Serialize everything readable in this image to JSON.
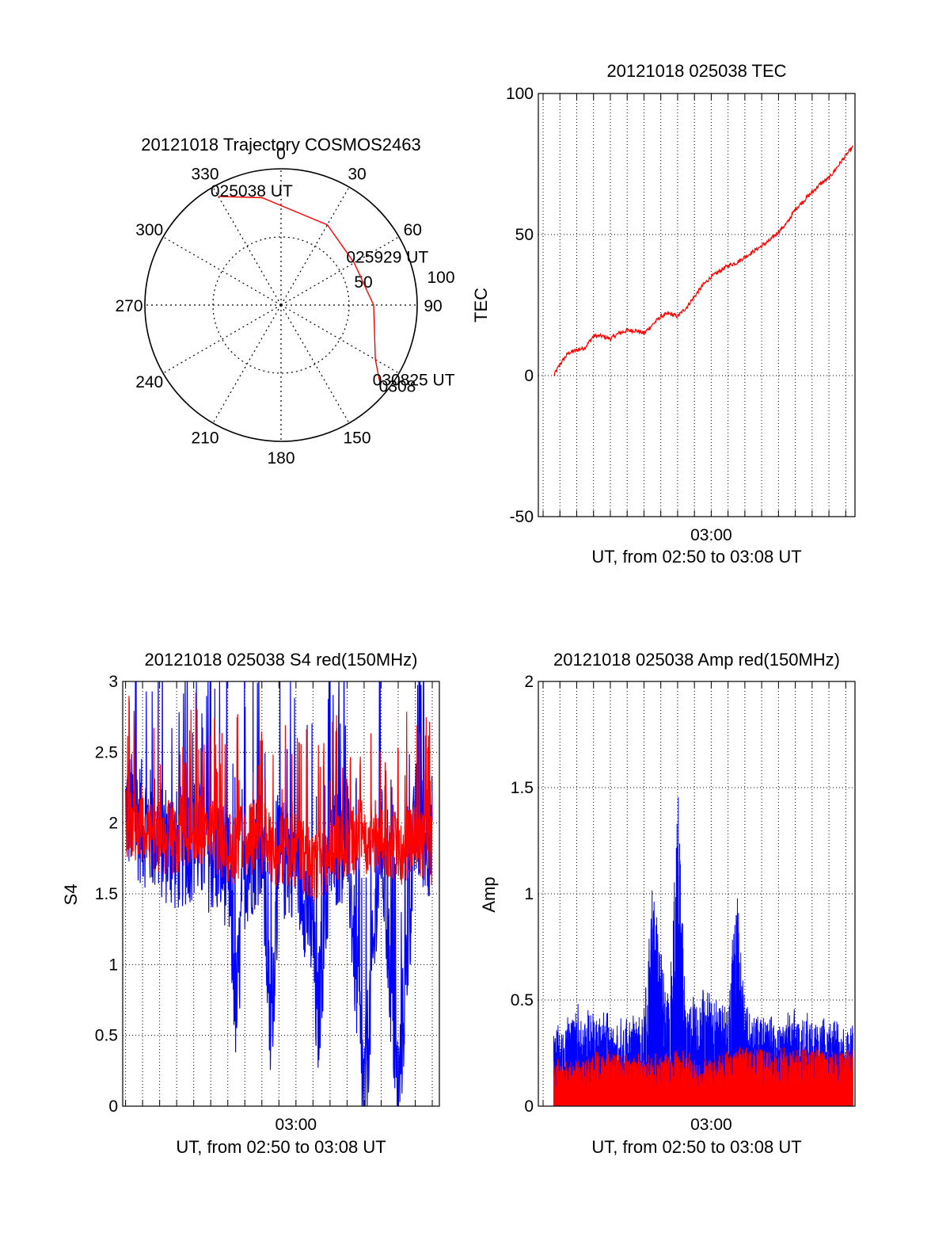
{
  "colors": {
    "primary": "#ff0000",
    "secondary": "#0000ff",
    "grid": "#000000"
  },
  "chart_data": [
    {
      "id": "trajectory",
      "type": "polar",
      "title": "20121018 Trajectory COSMOS2463",
      "azimuth_labels": [
        "0",
        "30",
        "60",
        "90",
        "150",
        "180",
        "210",
        "240",
        "270",
        "300",
        "330"
      ],
      "radial_labels": [
        "50",
        "100"
      ],
      "rlim": [
        0,
        100
      ],
      "grid": true,
      "track": {
        "color": "#ff0000",
        "points": [
          {
            "az": 330,
            "r": 92,
            "label": "025038 UT"
          },
          {
            "az": 350,
            "r": 80
          },
          {
            "az": 30,
            "r": 68
          },
          {
            "az": 60,
            "r": 62,
            "label": "025929 UT"
          },
          {
            "az": 90,
            "r": 68
          },
          {
            "az": 120,
            "r": 80
          },
          {
            "az": 129,
            "r": 94,
            "label": "030825 UT"
          }
        ],
        "overlap_label": "0308"
      }
    },
    {
      "id": "tec",
      "type": "line",
      "title": "20121018 025038 TEC",
      "ylabel": "TEC",
      "xlabel": "UT, from 02:50 to 03:08 UT",
      "ylim": [
        -50,
        100
      ],
      "yticks": [
        "-50",
        "0",
        "50",
        "100"
      ],
      "xticks": [
        {
          "t": "03:00",
          "label": "03:00"
        }
      ],
      "xlim": [
        "02:49:43",
        "03:08:33"
      ],
      "grid": true,
      "series": [
        {
          "color": "#ff0000",
          "x": [
            "02:50:38",
            "02:51:00",
            "02:51:30",
            "02:52:00",
            "02:52:30",
            "02:53:00",
            "02:53:30",
            "02:54:00",
            "02:54:30",
            "02:55:00",
            "02:55:30",
            "02:56:00",
            "02:56:30",
            "02:57:00",
            "02:57:30",
            "02:58:00",
            "02:58:30",
            "02:59:00",
            "02:59:30",
            "03:00:00",
            "03:00:30",
            "03:01:00",
            "03:01:30",
            "03:02:00",
            "03:02:30",
            "03:03:00",
            "03:03:30",
            "03:04:00",
            "03:04:30",
            "03:05:00",
            "03:05:30",
            "03:06:00",
            "03:06:30",
            "03:07:00",
            "03:07:30",
            "03:08:00",
            "03:08:25"
          ],
          "values": [
            0,
            4,
            8,
            9,
            10,
            14,
            14,
            13,
            15,
            16,
            16,
            15,
            18,
            21,
            22,
            21,
            24,
            28,
            32,
            35,
            37,
            39,
            40,
            42,
            44,
            46,
            48,
            51,
            54,
            59,
            62,
            65,
            68,
            70,
            74,
            78,
            81
          ]
        }
      ]
    },
    {
      "id": "s4",
      "type": "line",
      "title": "20121018 025038 S4 red(150MHz)",
      "ylabel": "S4",
      "xlabel": "UT, from 02:50 to 03:08 UT",
      "ylim": [
        0,
        3
      ],
      "yticks": [
        "0",
        "0.5",
        "1",
        "1.5",
        "2",
        "2.5",
        "3"
      ],
      "xticks": [
        {
          "t": "03:00",
          "label": "03:00"
        }
      ],
      "xlim": [
        "02:49:50",
        "03:08:25"
      ],
      "grid": true,
      "series": [
        {
          "color": "#0000ff",
          "x": [
            "02:50:00",
            "02:51:00",
            "02:52:00",
            "02:53:00",
            "02:54:00",
            "02:55:00",
            "02:56:00",
            "02:56:30",
            "02:57:00",
            "02:58:00",
            "02:58:30",
            "02:59:00",
            "03:00:00",
            "03:01:00",
            "03:01:15",
            "03:02:00",
            "03:03:00",
            "03:04:00",
            "03:05:00",
            "03:06:00",
            "03:07:00",
            "03:08:00"
          ],
          "values": [
            2.1,
            2.0,
            1.9,
            1.8,
            1.9,
            1.8,
            1.7,
            0.65,
            1.7,
            1.9,
            0.5,
            1.7,
            1.8,
            1.2,
            0.55,
            1.8,
            1.9,
            0.05,
            1.9,
            0.05,
            2.0,
            1.9
          ]
        },
        {
          "color": "#ff0000",
          "x": [
            "02:50:00",
            "02:51:00",
            "02:52:00",
            "02:53:00",
            "02:54:00",
            "02:55:00",
            "02:56:00",
            "02:57:00",
            "02:58:00",
            "02:59:00",
            "03:00:00",
            "03:01:00",
            "03:02:00",
            "03:03:00",
            "03:04:00",
            "03:05:00",
            "03:06:00",
            "03:07:00",
            "03:08:00"
          ],
          "values": [
            2.0,
            2.0,
            1.9,
            1.9,
            2.0,
            1.9,
            1.8,
            1.9,
            1.9,
            1.8,
            1.8,
            1.7,
            1.8,
            1.9,
            1.9,
            1.9,
            1.8,
            1.9,
            1.8
          ]
        }
      ]
    },
    {
      "id": "amp",
      "type": "line",
      "title": "20121018 025038 Amp red(150MHz)",
      "ylabel": "Amp",
      "xlabel": "UT, from 02:50 to 03:08 UT",
      "ylim": [
        0,
        2
      ],
      "yticks": [
        "0",
        "0.5",
        "1",
        "1.5",
        "2"
      ],
      "xticks": [
        {
          "t": "03:00",
          "label": "03:00"
        }
      ],
      "xlim": [
        "02:49:43",
        "03:08:33"
      ],
      "grid": true,
      "series": [
        {
          "color": "#0000ff",
          "x": [
            "02:50:38",
            "02:52:00",
            "02:54:00",
            "02:55:30",
            "02:56:00",
            "02:56:30",
            "02:57:00",
            "02:57:30",
            "02:58:00",
            "02:58:30",
            "02:59:00",
            "02:59:30",
            "03:00:00",
            "03:01:00",
            "03:01:30",
            "03:02:00",
            "03:03:00",
            "03:04:00",
            "03:05:00",
            "03:06:00",
            "03:07:00",
            "03:08:25"
          ],
          "values": [
            0.35,
            0.45,
            0.4,
            0.4,
            0.45,
            0.95,
            0.7,
            0.45,
            1.55,
            0.45,
            0.5,
            0.5,
            0.5,
            0.45,
            0.98,
            0.45,
            0.4,
            0.38,
            0.42,
            0.4,
            0.38,
            0.35
          ]
        },
        {
          "color": "#ff0000",
          "x": [
            "02:50:38",
            "02:52:00",
            "02:54:00",
            "02:56:00",
            "02:58:00",
            "03:00:00",
            "03:02:00",
            "03:04:00",
            "03:06:00",
            "03:08:25"
          ],
          "values": [
            0.2,
            0.22,
            0.25,
            0.22,
            0.25,
            0.2,
            0.28,
            0.25,
            0.28,
            0.25
          ]
        }
      ]
    }
  ]
}
